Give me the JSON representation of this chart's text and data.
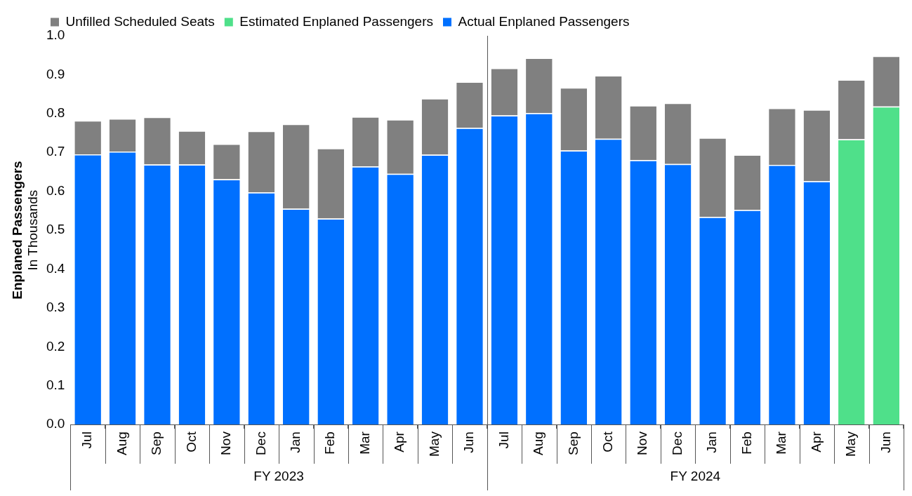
{
  "chart_data": {
    "type": "bar",
    "stacked": true,
    "categories": [
      "Jul",
      "Aug",
      "Sep",
      "Oct",
      "Nov",
      "Dec",
      "Jan",
      "Feb",
      "Mar",
      "Apr",
      "May",
      "Jun",
      "Jul",
      "Aug",
      "Sep",
      "Oct",
      "Nov",
      "Dec",
      "Jan",
      "Feb",
      "Mar",
      "Apr",
      "May",
      "Jun"
    ],
    "series": [
      {
        "name": "Actual Enplaned Passengers",
        "color": "#0070ff",
        "values": [
          0.695,
          0.702,
          0.669,
          0.669,
          0.631,
          0.597,
          0.555,
          0.53,
          0.664,
          0.645,
          0.694,
          0.763,
          0.795,
          0.801,
          0.705,
          0.735,
          0.68,
          0.67,
          0.534,
          0.552,
          0.668,
          0.626,
          null,
          null
        ]
      },
      {
        "name": "Estimated Enplaned Passengers",
        "color": "#4fe08a",
        "values": [
          null,
          null,
          null,
          null,
          null,
          null,
          null,
          null,
          null,
          null,
          null,
          null,
          null,
          null,
          null,
          null,
          null,
          null,
          null,
          null,
          null,
          null,
          0.734,
          0.818
        ]
      },
      {
        "name": "Unfilled Scheduled Seats",
        "color": "#808080",
        "values": [
          0.087,
          0.085,
          0.122,
          0.087,
          0.091,
          0.158,
          0.218,
          0.181,
          0.128,
          0.14,
          0.145,
          0.119,
          0.122,
          0.142,
          0.162,
          0.163,
          0.141,
          0.157,
          0.204,
          0.142,
          0.146,
          0.184,
          0.153,
          0.13
        ]
      }
    ],
    "ylabel": "Enplaned Passengers\nIn Thousands",
    "ylim": [
      0,
      1.0
    ],
    "yticks": [
      {
        "value": 0,
        "label": "0.0"
      },
      {
        "value": 0.1,
        "label": "0.1"
      },
      {
        "value": 0.2,
        "label": "0.2"
      },
      {
        "value": 0.3,
        "label": "0.3"
      },
      {
        "value": 0.4,
        "label": "0.4"
      },
      {
        "value": 0.5,
        "label": "0.5"
      },
      {
        "value": 0.6,
        "label": "0.6"
      },
      {
        "value": 0.7,
        "label": "0.7"
      },
      {
        "value": 0.8,
        "label": "0.8"
      },
      {
        "value": 0.9,
        "label": "0.9"
      },
      {
        "value": 1.0,
        "label": "1.0"
      }
    ],
    "annotations": [
      "FY 2023",
      "FY 2024"
    ],
    "grid": false,
    "legend": "top left"
  }
}
